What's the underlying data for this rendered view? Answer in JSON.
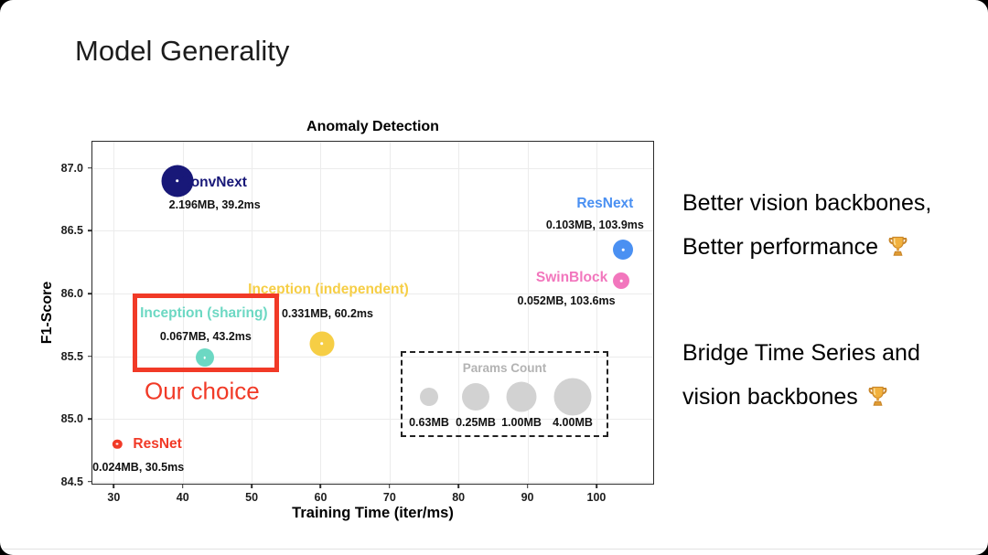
{
  "slide": {
    "title": "Model Generality",
    "right_notes": [
      {
        "lines": [
          "Better vision backbones,",
          "Better performance"
        ],
        "icon": "trophy-icon"
      },
      {
        "lines": [
          "Bridge Time Series and",
          "vision backbones"
        ],
        "icon": "trophy-icon"
      }
    ]
  },
  "chart_data": {
    "type": "scatter",
    "title": "Anomaly Detection",
    "xlabel": "Training Time (iter/ms)",
    "ylabel": "F1-Score",
    "xlim": [
      26.9,
      108.5
    ],
    "ylim": [
      84.47,
      87.21
    ],
    "xticks": [
      30,
      40,
      50,
      60,
      70,
      80,
      90,
      100
    ],
    "yticks": [
      "87.0",
      "86.5",
      "86.0",
      "85.5",
      "85.0",
      "84.5"
    ],
    "grid": true,
    "legend_position": "lower right inside plot",
    "points": [
      {
        "name": "ConvNext",
        "time_ms": 39.2,
        "f1": 86.9,
        "params_mb": 2.196,
        "sublabel": "2.196MB, 39.2ms",
        "color": "#181878",
        "radius_px": 17.5,
        "label_offset": {
          "name": [
            40,
            2
          ],
          "sub": [
            41,
            26
          ]
        }
      },
      {
        "name": "ResNext",
        "time_ms": 103.9,
        "f1": 86.35,
        "params_mb": 0.103,
        "sublabel": "0.103MB, 103.9ms",
        "color": "#4a90f2",
        "radius_px": 11,
        "label_offset": {
          "name": [
            -20,
            -50
          ],
          "sub": [
            -31,
            -27
          ]
        }
      },
      {
        "name": "SwinBlock",
        "time_ms": 103.6,
        "f1": 86.1,
        "params_mb": 0.052,
        "sublabel": "0.052MB, 103.6ms",
        "color": "#f276bd",
        "radius_px": 9,
        "label_offset": {
          "name": [
            -54,
            -3
          ],
          "sub": [
            -60,
            22
          ]
        }
      },
      {
        "name": "Inception (independent)",
        "time_ms": 60.2,
        "f1": 85.6,
        "params_mb": 0.331,
        "sublabel": "0.331MB, 60.2ms",
        "color": "#f6ce45",
        "radius_px": 13.5,
        "label_offset": {
          "name": [
            7,
            -59
          ],
          "sub": [
            6,
            -33
          ]
        }
      },
      {
        "name": "Inception (sharing)",
        "time_ms": 43.2,
        "f1": 85.49,
        "params_mb": 0.067,
        "sublabel": "0.067MB, 43.2ms",
        "color": "#6cd8c3",
        "radius_px": 10,
        "label_offset": {
          "name": [
            -1,
            -48
          ],
          "sub": [
            1,
            -23
          ]
        }
      },
      {
        "name": "ResNet",
        "time_ms": 30.5,
        "f1": 84.8,
        "params_mb": 0.024,
        "sublabel": "0.024MB, 30.5ms",
        "color": "#f13a27",
        "radius_px": 5.2,
        "label_offset": {
          "name": [
            44,
            0
          ],
          "sub": [
            23,
            25
          ]
        }
      }
    ],
    "annotation": {
      "text": "Our choice",
      "color": "#f13a27",
      "target": "Inception (sharing)"
    },
    "size_legend": {
      "title": "Params Count",
      "title_color": "#b3b3b3",
      "bubble_color": "#d2d2d2",
      "items": [
        {
          "label": "0.63MB",
          "radius_px": 10
        },
        {
          "label": "0.25MB",
          "radius_px": 15
        },
        {
          "label": "1.00MB",
          "radius_px": 16.5
        },
        {
          "label": "4.00MB",
          "radius_px": 20.5
        }
      ]
    },
    "accent_red": "#f13a27"
  }
}
